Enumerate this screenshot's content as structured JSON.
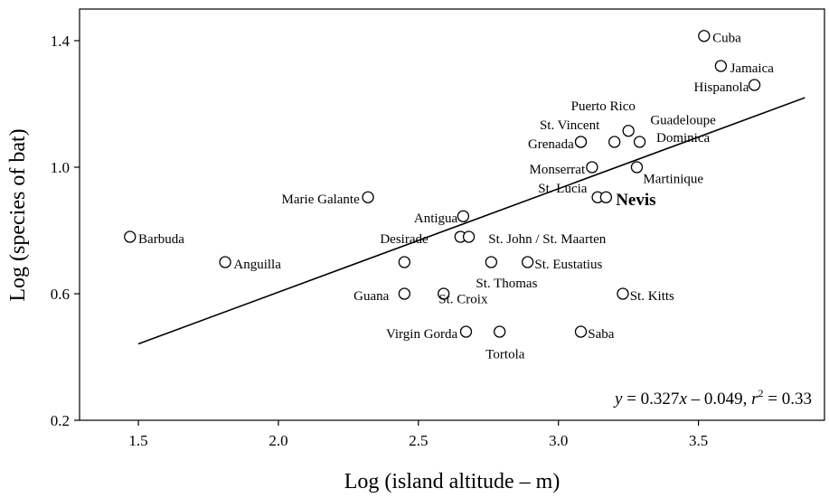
{
  "chart_data": {
    "type": "scatter",
    "xlabel": "Log (island altitude – m)",
    "ylabel": "Log (species of bat)",
    "xlim": [
      1.29,
      3.95
    ],
    "ylim": [
      0.2,
      1.5
    ],
    "xticks": [
      1.5,
      2.0,
      2.5,
      3.0,
      3.5
    ],
    "xtick_labels": [
      "1.5",
      "2.0",
      "2.5",
      "3.0",
      "3.5"
    ],
    "yticks": [
      0.2,
      0.6,
      1.0,
      1.4
    ],
    "ytick_labels": [
      "0.2",
      "0.6",
      "1.0",
      "1.4"
    ],
    "grid": false,
    "points": [
      {
        "name": "Cuba",
        "x": 3.52,
        "y": 1.415
      },
      {
        "name": "Jamaica",
        "x": 3.58,
        "y": 1.32
      },
      {
        "name": "Hispanola",
        "x": 3.7,
        "y": 1.26
      },
      {
        "name": "Puerto Rico",
        "x": 3.25,
        "y": 1.115
      },
      {
        "name": "Guadeloupe",
        "x": 3.2,
        "y": 1.08
      },
      {
        "name": "Dominica",
        "x": 3.29,
        "y": 1.08
      },
      {
        "name": "St. Vincent",
        "x": 3.08,
        "y": 1.08
      },
      {
        "name": "Grenada",
        "x": 3.08,
        "y": 1.08
      },
      {
        "name": "Monserrat",
        "x": 3.12,
        "y": 1.0
      },
      {
        "name": "Martinique",
        "x": 3.28,
        "y": 1.0
      },
      {
        "name": "St. Lucia",
        "x": 3.14,
        "y": 0.905
      },
      {
        "name": "Nevis",
        "x": 3.17,
        "y": 0.905
      },
      {
        "name": "Marie Galante",
        "x": 2.32,
        "y": 0.905
      },
      {
        "name": "Antigua",
        "x": 2.66,
        "y": 0.845
      },
      {
        "name": "Barbuda",
        "x": 1.47,
        "y": 0.78
      },
      {
        "name": "Desirade",
        "x": 2.65,
        "y": 0.78
      },
      {
        "name": "St. John / St. Maarten",
        "x": 2.68,
        "y": 0.78
      },
      {
        "name": "Anguilla",
        "x": 1.81,
        "y": 0.7
      },
      {
        "name": "St. Thomas",
        "x": 2.45,
        "y": 0.7
      },
      {
        "name": "St. Thomas",
        "x": 2.76,
        "y": 0.7
      },
      {
        "name": "St. Eustatius",
        "x": 2.89,
        "y": 0.7
      },
      {
        "name": "Guana",
        "x": 2.45,
        "y": 0.6
      },
      {
        "name": "St. Croix",
        "x": 2.59,
        "y": 0.6
      },
      {
        "name": "St. Kitts",
        "x": 3.23,
        "y": 0.6
      },
      {
        "name": "Virgin Gorda",
        "x": 2.67,
        "y": 0.48
      },
      {
        "name": "Tortola",
        "x": 2.79,
        "y": 0.48
      },
      {
        "name": "Saba",
        "x": 3.08,
        "y": 0.48
      }
    ],
    "labels": [
      {
        "text": "Cuba",
        "x": 3.55,
        "y": 1.41,
        "anchor": "start",
        "bold": false
      },
      {
        "text": "Jamaica",
        "x": 3.613,
        "y": 1.315,
        "anchor": "start",
        "bold": false
      },
      {
        "text": "Hispanola",
        "x": 3.68,
        "y": 1.255,
        "anchor": "end",
        "bold": false
      },
      {
        "text": "Puerto Rico",
        "x": 3.16,
        "y": 1.195,
        "anchor": "middle",
        "bold": false
      },
      {
        "text": "St. Vincent",
        "x": 3.04,
        "y": 1.135,
        "anchor": "middle",
        "bold": false
      },
      {
        "text": "Guadeloupe",
        "x": 3.445,
        "y": 1.15,
        "anchor": "middle",
        "bold": false
      },
      {
        "text": "Dominica",
        "x": 3.445,
        "y": 1.095,
        "anchor": "middle",
        "bold": false
      },
      {
        "text": "Grenada",
        "x": 3.055,
        "y": 1.075,
        "anchor": "end",
        "bold": false
      },
      {
        "text": "Monserrat",
        "x": 3.095,
        "y": 0.995,
        "anchor": "end",
        "bold": false
      },
      {
        "text": "Martinique",
        "x": 3.41,
        "y": 0.965,
        "anchor": "middle",
        "bold": false
      },
      {
        "text": "St. Lucia",
        "x": 3.015,
        "y": 0.935,
        "anchor": "middle",
        "bold": false
      },
      {
        "text": "Nevis",
        "x": 3.205,
        "y": 0.895,
        "anchor": "start",
        "bold": true
      },
      {
        "text": "Marie Galante",
        "x": 2.29,
        "y": 0.9,
        "anchor": "end",
        "bold": false
      },
      {
        "text": "Antigua",
        "x": 2.64,
        "y": 0.84,
        "anchor": "end",
        "bold": false
      },
      {
        "text": "Barbuda",
        "x": 1.5,
        "y": 0.775,
        "anchor": "start",
        "bold": false
      },
      {
        "text": "Desirade",
        "x": 2.535,
        "y": 0.775,
        "anchor": "end",
        "bold": false
      },
      {
        "text": "St. John / St. Maarten",
        "x": 2.75,
        "y": 0.775,
        "anchor": "start",
        "bold": false
      },
      {
        "text": "Anguilla",
        "x": 1.84,
        "y": 0.695,
        "anchor": "start",
        "bold": false
      },
      {
        "text": "St. Eustatius",
        "x": 2.915,
        "y": 0.695,
        "anchor": "start",
        "bold": false
      },
      {
        "text": "St. Thomas",
        "x": 2.815,
        "y": 0.635,
        "anchor": "middle",
        "bold": false
      },
      {
        "text": "Guana",
        "x": 2.395,
        "y": 0.595,
        "anchor": "end",
        "bold": false
      },
      {
        "text": "St. Croix",
        "x": 2.66,
        "y": 0.585,
        "anchor": "middle",
        "bold": false
      },
      {
        "text": "St. Kitts",
        "x": 3.255,
        "y": 0.595,
        "anchor": "start",
        "bold": false
      },
      {
        "text": "Virgin Gorda",
        "x": 2.64,
        "y": 0.475,
        "anchor": "end",
        "bold": false
      },
      {
        "text": "Tortola",
        "x": 2.81,
        "y": 0.41,
        "anchor": "middle",
        "bold": false
      },
      {
        "text": "Saba",
        "x": 3.105,
        "y": 0.475,
        "anchor": "start",
        "bold": false
      }
    ],
    "regression": {
      "slope": 0.327,
      "intercept": -0.049,
      "x_start": 1.5,
      "x_end": 3.88
    },
    "annotation": {
      "y_var": "y",
      "eq_body": " = 0.327",
      "x_var": "x",
      "eq_tail": " – 0.049, ",
      "r_var": "r",
      "r_sup": "2",
      "r_value": " = 0.33"
    }
  }
}
